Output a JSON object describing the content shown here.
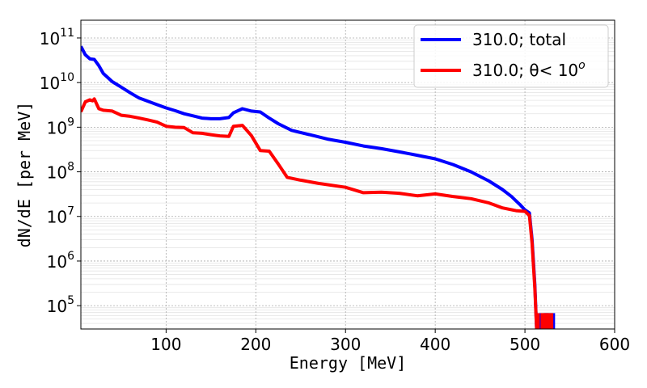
{
  "chart_data": {
    "type": "line",
    "title": "",
    "xlabel": "Energy [MeV]",
    "ylabel": "dN/dE [per MeV]",
    "xlim": [
      5,
      600
    ],
    "ylim": [
      30000,
      250000000000
    ],
    "yscale": "log",
    "grid": true,
    "legend_position": "top-right",
    "x_ticks": [
      100,
      200,
      300,
      400,
      500,
      600
    ],
    "y_ticks": [
      {
        "value": 100000,
        "label": "10",
        "exp": "5"
      },
      {
        "value": 1000000,
        "label": "10",
        "exp": "6"
      },
      {
        "value": 10000000,
        "label": "10",
        "exp": "7"
      },
      {
        "value": 100000000,
        "label": "10",
        "exp": "8"
      },
      {
        "value": 1000000000,
        "label": "10",
        "exp": "9"
      },
      {
        "value": 10000000000,
        "label": "10",
        "exp": "10"
      },
      {
        "value": 100000000000,
        "label": "10",
        "exp": "11"
      }
    ],
    "series": [
      {
        "name": "310.0; total",
        "color": "#0000ff",
        "points": [
          [
            5,
            65000000000.0
          ],
          [
            10,
            42000000000.0
          ],
          [
            15,
            34000000000.0
          ],
          [
            20,
            33000000000.0
          ],
          [
            25,
            24000000000.0
          ],
          [
            30,
            16000000000.0
          ],
          [
            40,
            10500000000.0
          ],
          [
            50,
            7900000000.0
          ],
          [
            60,
            5900000000.0
          ],
          [
            70,
            4500000000.0
          ],
          [
            80,
            3800000000.0
          ],
          [
            90,
            3200000000.0
          ],
          [
            100,
            2700000000.0
          ],
          [
            110,
            2350000000.0
          ],
          [
            120,
            2000000000.0
          ],
          [
            130,
            1800000000.0
          ],
          [
            140,
            1600000000.0
          ],
          [
            150,
            1550000000.0
          ],
          [
            160,
            1550000000.0
          ],
          [
            170,
            1650000000.0
          ],
          [
            175,
            2100000000.0
          ],
          [
            185,
            2600000000.0
          ],
          [
            195,
            2300000000.0
          ],
          [
            205,
            2200000000.0
          ],
          [
            215,
            1600000000.0
          ],
          [
            225,
            1200000000.0
          ],
          [
            240,
            850000000.0
          ],
          [
            260,
            680000000.0
          ],
          [
            280,
            540000000.0
          ],
          [
            300,
            460000000.0
          ],
          [
            320,
            380000000.0
          ],
          [
            340,
            330000000.0
          ],
          [
            360,
            280000000.0
          ],
          [
            380,
            235000000.0
          ],
          [
            400,
            195000000.0
          ],
          [
            420,
            145000000.0
          ],
          [
            440,
            100000000.0
          ],
          [
            460,
            62000000.0
          ],
          [
            475,
            40000000.0
          ],
          [
            485,
            28000000.0
          ],
          [
            495,
            18000000.0
          ],
          [
            500,
            14000000.0
          ],
          [
            505,
            12000000.0
          ],
          [
            508,
            3000000.0
          ],
          [
            511,
            300000.0
          ],
          [
            513,
            30000
          ]
        ],
        "spikes": [
          517,
          522,
          524,
          526,
          529,
          532
        ],
        "spike_top": 68000
      },
      {
        "name": "310.0; θ< 10",
        "name_exp": "o",
        "color": "#ff0000",
        "points": [
          [
            5,
            2200000000.0
          ],
          [
            10,
            3700000000.0
          ],
          [
            15,
            4100000000.0
          ],
          [
            18,
            3900000000.0
          ],
          [
            20,
            4300000000.0
          ],
          [
            25,
            2600000000.0
          ],
          [
            30,
            2400000000.0
          ],
          [
            40,
            2300000000.0
          ],
          [
            50,
            1850000000.0
          ],
          [
            60,
            1750000000.0
          ],
          [
            70,
            1600000000.0
          ],
          [
            80,
            1450000000.0
          ],
          [
            90,
            1300000000.0
          ],
          [
            100,
            1050000000.0
          ],
          [
            110,
            1000000000.0
          ],
          [
            120,
            980000000.0
          ],
          [
            130,
            750000000.0
          ],
          [
            140,
            730000000.0
          ],
          [
            150,
            680000000.0
          ],
          [
            160,
            640000000.0
          ],
          [
            170,
            620000000.0
          ],
          [
            175,
            1050000000.0
          ],
          [
            185,
            1100000000.0
          ],
          [
            195,
            650000000.0
          ],
          [
            205,
            300000000.0
          ],
          [
            215,
            290000000.0
          ],
          [
            225,
            150000000.0
          ],
          [
            235,
            75000000.0
          ],
          [
            250,
            65000000.0
          ],
          [
            270,
            55000000.0
          ],
          [
            300,
            45000000.0
          ],
          [
            320,
            34000000.0
          ],
          [
            340,
            35000000.0
          ],
          [
            360,
            33000000.0
          ],
          [
            380,
            29000000.0
          ],
          [
            400,
            32000000.0
          ],
          [
            420,
            28000000.0
          ],
          [
            440,
            25000000.0
          ],
          [
            460,
            20000000.0
          ],
          [
            475,
            15500000.0
          ],
          [
            490,
            13500000.0
          ],
          [
            500,
            13000000.0
          ],
          [
            505,
            10500000.0
          ],
          [
            508,
            2500000.0
          ],
          [
            511,
            250000.0
          ],
          [
            513,
            30000
          ]
        ],
        "spikes": [
          515,
          519,
          521,
          523,
          525,
          527,
          530
        ],
        "spike_top": 68000
      }
    ]
  }
}
